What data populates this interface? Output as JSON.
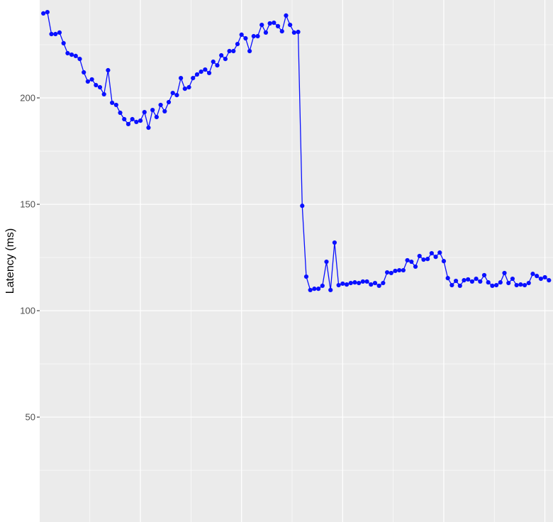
{
  "chart_data": {
    "type": "line",
    "title": "",
    "xlabel": "",
    "ylabel": "Latency (ms)",
    "xlim": [
      0.1,
      127
    ],
    "ylim": [
      0.7,
      246
    ],
    "x_major_ticks": [
      25,
      50,
      75,
      100,
      125
    ],
    "x_minor_ticks": [
      12.5,
      37.5,
      62.5,
      87.5,
      112.5
    ],
    "y_ticks": [
      50,
      100,
      150,
      200
    ],
    "y_tick_labels": [
      "50",
      "100",
      "150",
      "200"
    ],
    "y_minor_ticks": [
      25,
      75,
      125,
      175,
      225
    ],
    "grid": true,
    "markers": true,
    "colors": {
      "series": "#0a10ff",
      "panel": "#ebebeb",
      "grid": "#ffffff"
    },
    "series": [
      {
        "values": [
          239.7,
          240.3,
          230,
          230,
          230.7,
          225.7,
          221,
          220.3,
          219.7,
          218.3,
          212,
          207.7,
          208.7,
          206,
          205,
          201.7,
          213,
          197.7,
          196.7,
          193,
          190,
          187.7,
          190,
          188.7,
          189.3,
          193.3,
          186,
          194.3,
          191,
          196.7,
          193.7,
          198,
          202.3,
          201.3,
          209.3,
          204.3,
          205,
          209.3,
          211,
          212.3,
          213.3,
          211.7,
          217,
          215.3,
          220,
          218.3,
          222,
          222,
          225.3,
          229.7,
          228,
          222,
          229,
          229,
          234.3,
          230.7,
          235,
          235.3,
          233.7,
          231.3,
          238.7,
          234.3,
          230.7,
          231,
          149.3,
          116,
          109.7,
          110.3,
          110.3,
          111.7,
          123,
          109.7,
          132,
          112,
          112.7,
          112.3,
          113,
          113.3,
          113,
          113.7,
          113.7,
          112.3,
          113,
          111.7,
          113,
          118,
          117.7,
          118.7,
          119,
          119,
          123.7,
          123,
          120.7,
          125.7,
          124,
          124.3,
          127,
          125.3,
          127.3,
          123.3,
          115.3,
          112,
          114,
          111.7,
          114.3,
          114.7,
          113.7,
          115,
          113.7,
          116.7,
          113.3,
          111.7,
          112,
          113.3,
          117.7,
          113,
          115,
          112,
          112.3,
          112,
          113,
          117.3,
          116.3,
          115,
          115.7,
          114.3
        ]
      }
    ]
  }
}
